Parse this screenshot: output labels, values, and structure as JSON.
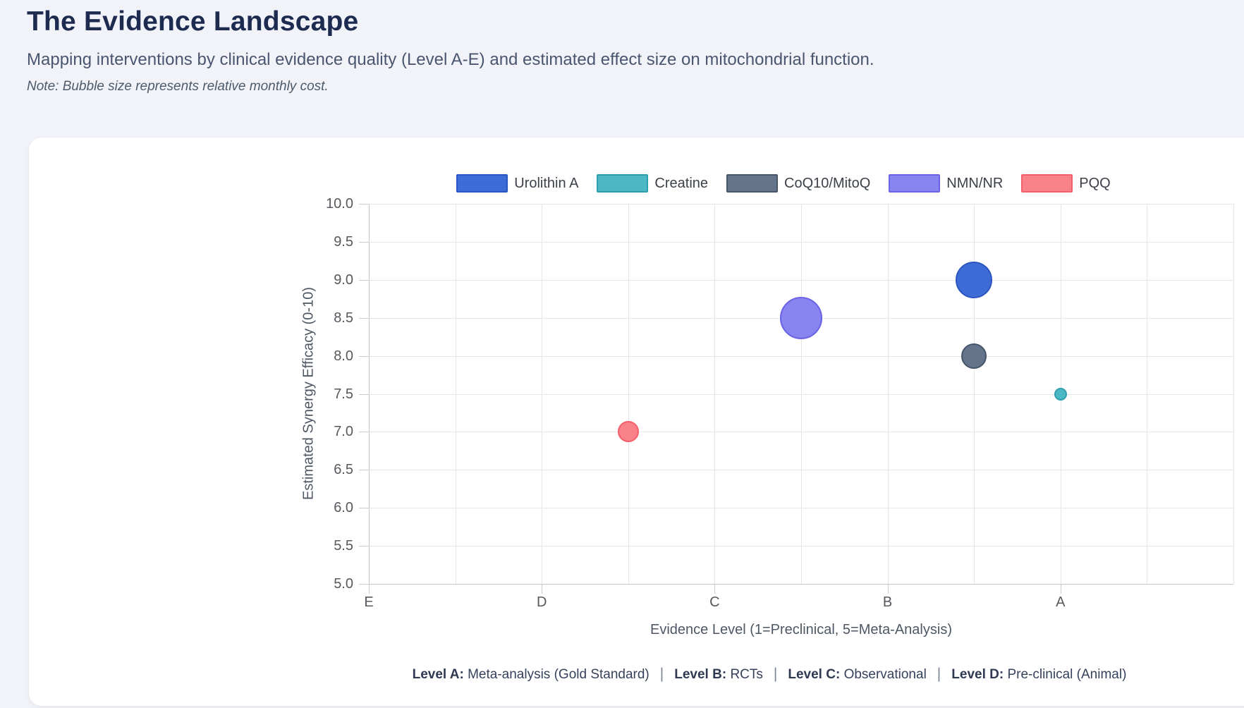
{
  "header": {
    "title": "The Evidence Landscape",
    "subtitle": "Mapping interventions by clinical evidence quality (Level A-E) and estimated effect size on mitochondrial function.",
    "note": "Note: Bubble size represents relative monthly cost."
  },
  "chart_data": {
    "type": "bubble",
    "xlabel": "Evidence Level (1=Preclinical, 5=Meta-Analysis)",
    "ylabel": "Estimated Synergy Efficacy (0-10)",
    "xlim": [
      1,
      6
    ],
    "ylim": [
      5,
      10
    ],
    "grid_step": 0.5,
    "legend_position": "top",
    "x_ticks": [
      {
        "value": 1,
        "label": "E"
      },
      {
        "value": 2,
        "label": "D"
      },
      {
        "value": 3,
        "label": "C"
      },
      {
        "value": 4,
        "label": "B"
      },
      {
        "value": 5,
        "label": "A"
      }
    ],
    "y_ticks": [
      {
        "value": 10,
        "label": "10.0"
      },
      {
        "value": 9.5,
        "label": "9.5"
      },
      {
        "value": 9,
        "label": "9.0"
      },
      {
        "value": 8.5,
        "label": "8.5"
      },
      {
        "value": 8,
        "label": "8.0"
      },
      {
        "value": 7.5,
        "label": "7.5"
      },
      {
        "value": 7,
        "label": "7.0"
      },
      {
        "value": 6.5,
        "label": "6.5"
      },
      {
        "value": 6,
        "label": "6.0"
      },
      {
        "value": 5.5,
        "label": "5.5"
      },
      {
        "value": 5,
        "label": "5.0"
      }
    ],
    "series": [
      {
        "name": "Urolithin A",
        "fill": "#3e6cd6",
        "border": "#2b55c0",
        "points": [
          {
            "x": 4.5,
            "y": 9.0,
            "r": 26
          }
        ]
      },
      {
        "name": "Creatine",
        "fill": "#4cb8c6",
        "border": "#2f9fb0",
        "points": [
          {
            "x": 5.0,
            "y": 7.5,
            "r": 9
          }
        ]
      },
      {
        "name": "CoQ10/MitoQ",
        "fill": "#64748b",
        "border": "#475569",
        "points": [
          {
            "x": 4.5,
            "y": 8.0,
            "r": 18
          }
        ]
      },
      {
        "name": "NMN/NR",
        "fill": "#8884f0",
        "border": "#6a63e6",
        "points": [
          {
            "x": 3.5,
            "y": 8.5,
            "r": 30
          }
        ]
      },
      {
        "name": "PQQ",
        "fill": "#f9828a",
        "border": "#f25f6a",
        "points": [
          {
            "x": 2.5,
            "y": 7.0,
            "r": 15
          }
        ]
      }
    ]
  },
  "footer": {
    "separator": "|",
    "items": [
      {
        "label": "Level A:",
        "text": "Meta-analysis (Gold Standard)"
      },
      {
        "label": "Level B:",
        "text": "RCTs"
      },
      {
        "label": "Level C:",
        "text": "Observational"
      },
      {
        "label": "Level D:",
        "text": "Pre-clinical (Animal)"
      }
    ]
  }
}
